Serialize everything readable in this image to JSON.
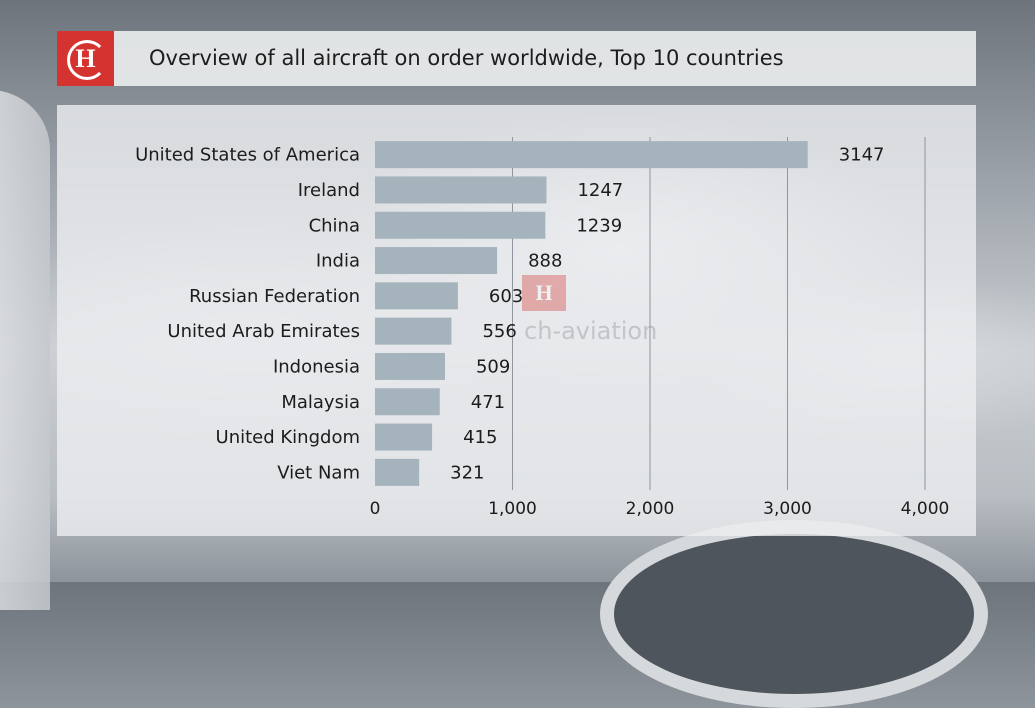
{
  "header": {
    "title": "Overview of all aircraft on order worldwide, Top 10 countries",
    "logo_icon": "ch-aviation-logo-icon",
    "logo_letter": "H"
  },
  "watermark": {
    "letter": "H",
    "text": "ch-aviation"
  },
  "colors": {
    "brand_red": "#d5332f",
    "bar": "#a5b3bd"
  },
  "chart_data": {
    "type": "bar",
    "orientation": "horizontal",
    "categories": [
      "United States of America",
      "Ireland",
      "China",
      "India",
      "Russian Federation",
      "United Arab Emirates",
      "Indonesia",
      "Malaysia",
      "United Kingdom",
      "Viet Nam"
    ],
    "values": [
      3147,
      1247,
      1239,
      888,
      603,
      556,
      509,
      471,
      415,
      321
    ],
    "xlim": [
      0,
      4000
    ],
    "xticks": [
      0,
      1000,
      2000,
      3000,
      4000
    ],
    "xtick_labels": [
      "0",
      "1,000",
      "2,000",
      "3,000",
      "4,000"
    ],
    "grid": true,
    "legend": "none"
  }
}
